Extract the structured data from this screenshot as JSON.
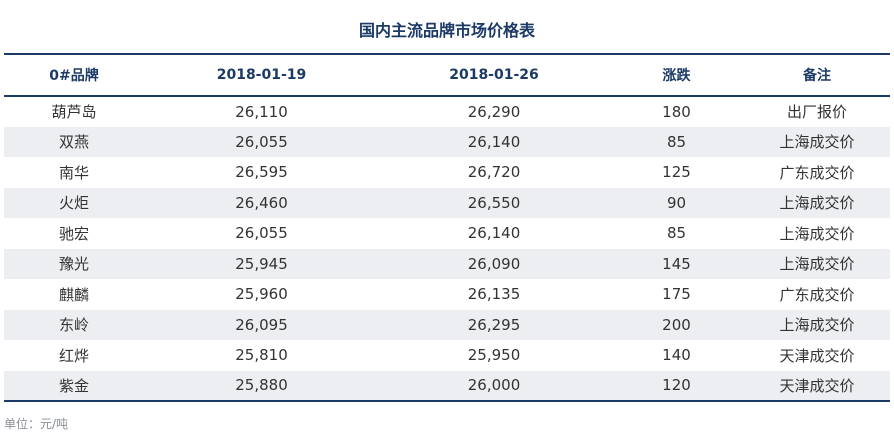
{
  "title": "国内主流品牌市场价格表",
  "headers": [
    "0#品牌",
    "2018-01-19",
    "2018-01-26",
    "涨跌",
    "备注"
  ],
  "rows": [
    [
      "葫芦岛",
      "26,110",
      "26,290",
      "180",
      "出厂报价"
    ],
    [
      "双燕",
      "26,055",
      "26,140",
      "85",
      "上海成交价"
    ],
    [
      "南华",
      "26,595",
      "26,720",
      "125",
      "广东成交价"
    ],
    [
      "火炬",
      "26,460",
      "26,550",
      "90",
      "上海成交价"
    ],
    [
      "驰宏",
      "26,055",
      "26,140",
      "85",
      "上海成交价"
    ],
    [
      "豫光",
      "25,945",
      "26,090",
      "145",
      "上海成交价"
    ],
    [
      "麒麟",
      "25,960",
      "26,135",
      "175",
      "广东成交价"
    ],
    [
      "东岭",
      "26,095",
      "26,295",
      "200",
      "上海成交价"
    ],
    [
      "红烨",
      "25,810",
      "25,950",
      "140",
      "天津成交价"
    ],
    [
      "紫金",
      "25,880",
      "26,000",
      "120",
      "天津成交价"
    ]
  ],
  "footnote": "单位：元/吨",
  "colors": {
    "accent": "#1b3a66",
    "row_alt": "#eceef1",
    "text": "#333333",
    "footnote": "#8a8f96"
  }
}
